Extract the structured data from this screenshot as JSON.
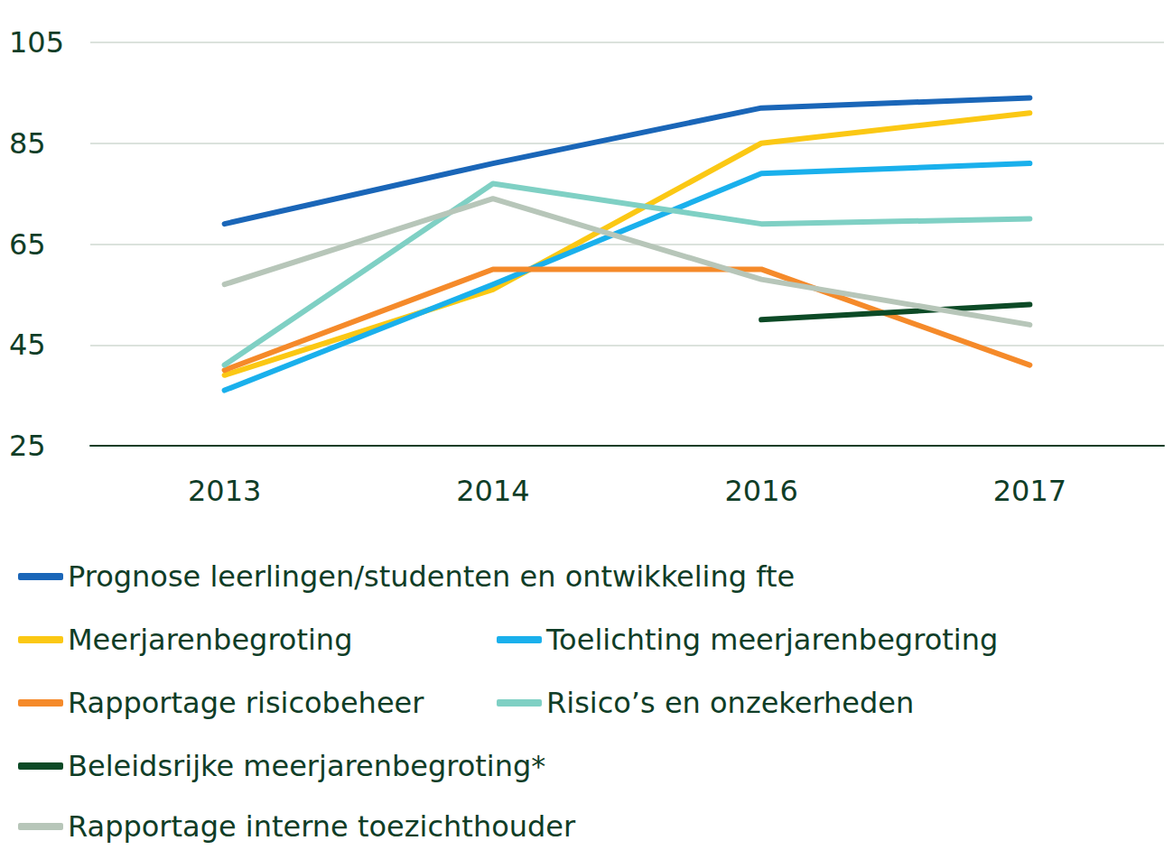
{
  "chart_data": {
    "type": "line",
    "categories": [
      "2013",
      "2014",
      "2016",
      "2017"
    ],
    "series": [
      {
        "name": "Prognose leerlingen/studenten en ontwikkeling fte",
        "color": "#1a66b8",
        "values": [
          69,
          81,
          92,
          94
        ]
      },
      {
        "name": "Meerjarenbegroting",
        "color": "#fbc814",
        "values": [
          39,
          56,
          85,
          91
        ]
      },
      {
        "name": "Toelichting meerjarenbegroting",
        "color": "#1ab0ec",
        "values": [
          36,
          57,
          79,
          81
        ]
      },
      {
        "name": "Rapportage risicobeheer",
        "color": "#f58a2a",
        "values": [
          40,
          60,
          60,
          41
        ]
      },
      {
        "name": "Risico’s en onzekerheden",
        "color": "#7fd0c4",
        "values": [
          41,
          77,
          69,
          70
        ]
      },
      {
        "name": "Beleidsrijke meerjarenbegroting*",
        "color": "#0c4a26",
        "values": [
          null,
          null,
          50,
          53
        ]
      },
      {
        "name": "Rapportage interne toezichthouder",
        "color": "#b7c6b9",
        "values": [
          57,
          74,
          58,
          49
        ]
      }
    ],
    "ylim": [
      25,
      105
    ],
    "yticks": [
      25,
      45,
      65,
      85,
      105
    ],
    "grid": true,
    "legend": "bottom"
  }
}
